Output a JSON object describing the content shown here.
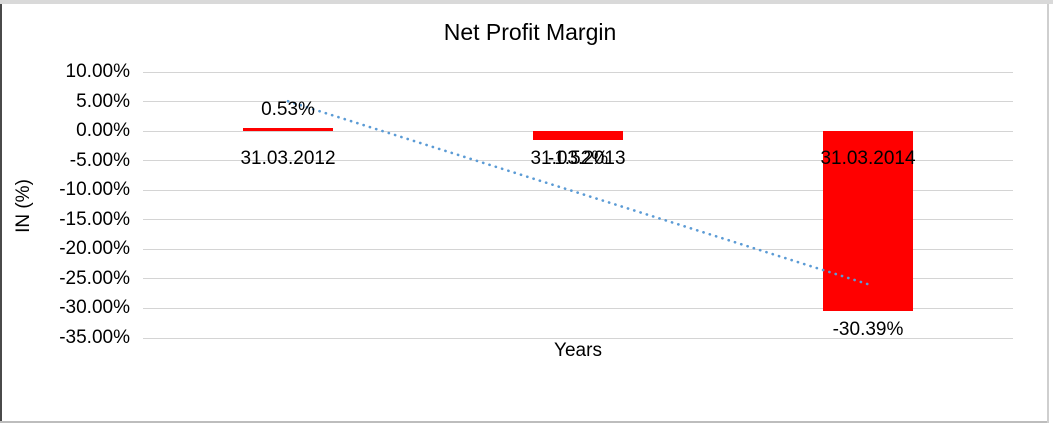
{
  "chart_data": {
    "type": "bar",
    "title": "Net Profit Margin",
    "xlabel": "Years",
    "ylabel": "IN (%)",
    "categories": [
      "31.03.2012",
      "31.03.2013",
      "31.03.2014"
    ],
    "series": [
      {
        "name": "Net Profit Margin",
        "color": "#ff0000",
        "values": [
          0.53,
          -1.52,
          -30.39
        ]
      }
    ],
    "data_labels": [
      "0.53%",
      "-1.52%",
      "-30.39%"
    ],
    "y_ticks": [
      {
        "label": "10.00%",
        "value": 10
      },
      {
        "label": "5.00%",
        "value": 5
      },
      {
        "label": "0.00%",
        "value": 0
      },
      {
        "label": "-5.00%",
        "value": -5
      },
      {
        "label": "-10.00%",
        "value": -10
      },
      {
        "label": "-15.00%",
        "value": -15
      },
      {
        "label": "-20.00%",
        "value": -20
      },
      {
        "label": "-25.00%",
        "value": -25
      },
      {
        "label": "-30.00%",
        "value": -30
      },
      {
        "label": "-35.00%",
        "value": -35
      }
    ],
    "ylim": [
      -35,
      10
    ],
    "grid": true,
    "legend": "none",
    "trendline": {
      "type": "linear",
      "style": "dotted",
      "color": "#5b9bd5",
      "start_value": 5.05,
      "end_value": -25.9
    },
    "bar_color": "#ff0000",
    "gridline_color": "#d4d4d4",
    "text_color": "#000000"
  }
}
